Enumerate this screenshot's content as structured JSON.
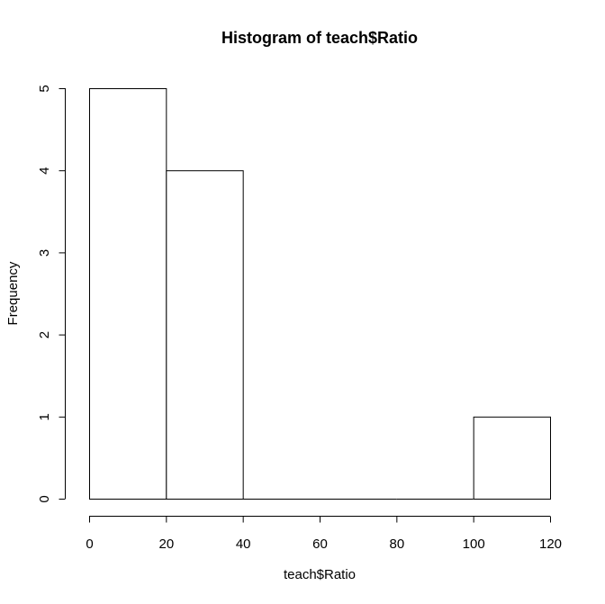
{
  "chart_data": {
    "type": "bar",
    "title": "Histogram of teach$Ratio",
    "xlabel": "teach$Ratio",
    "ylabel": "Frequency",
    "bins": [
      {
        "start": 0,
        "end": 20,
        "count": 5
      },
      {
        "start": 20,
        "end": 40,
        "count": 4
      },
      {
        "start": 40,
        "end": 60,
        "count": 0
      },
      {
        "start": 60,
        "end": 80,
        "count": 0
      },
      {
        "start": 80,
        "end": 100,
        "count": 0
      },
      {
        "start": 100,
        "end": 120,
        "count": 1
      }
    ],
    "xticks": [
      "0",
      "20",
      "40",
      "60",
      "80",
      "100",
      "120"
    ],
    "yticks": [
      "0",
      "1",
      "2",
      "3",
      "4",
      "5"
    ],
    "xlim": [
      0,
      120
    ],
    "ylim": [
      0,
      5
    ],
    "grid": false,
    "legend": "none"
  }
}
